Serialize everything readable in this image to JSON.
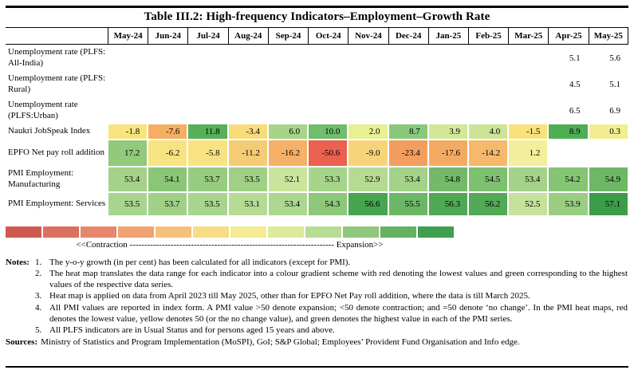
{
  "title": "Table III.2: High-frequency Indicators–Employment–Growth Rate",
  "columns": [
    "May-24",
    "Jun-24",
    "Jul-24",
    "Aug-24",
    "Sep-24",
    "Oct-24",
    "Nov-24",
    "Dec-24",
    "Jan-25",
    "Feb-25",
    "Mar-25",
    "Apr-25",
    "May-25"
  ],
  "rows": [
    {
      "label": "Unemployment rate (PLFS: All-India)",
      "values": [
        "",
        "",
        "",
        "",
        "",
        "",
        "",
        "",
        "",
        "",
        "",
        "5.1",
        "5.6"
      ],
      "colors": [
        "",
        "",
        "",
        "",
        "",
        "",
        "",
        "",
        "",
        "",
        "",
        "",
        ""
      ]
    },
    {
      "label": "Unemployment rate (PLFS: Rural)",
      "values": [
        "",
        "",
        "",
        "",
        "",
        "",
        "",
        "",
        "",
        "",
        "",
        "4.5",
        "5.1"
      ],
      "colors": [
        "",
        "",
        "",
        "",
        "",
        "",
        "",
        "",
        "",
        "",
        "",
        "",
        ""
      ]
    },
    {
      "label": "Unemployment rate (PLFS:Urban)",
      "values": [
        "",
        "",
        "",
        "",
        "",
        "",
        "",
        "",
        "",
        "",
        "",
        "6.5",
        "6.9"
      ],
      "colors": [
        "",
        "",
        "",
        "",
        "",
        "",
        "",
        "",
        "",
        "",
        "",
        "",
        ""
      ]
    },
    {
      "label": "Naukri JobSpeak Index",
      "values": [
        "-1.8",
        "-7.6",
        "11.8",
        "-3.4",
        "6.0",
        "10.0",
        "2.0",
        "8.7",
        "3.9",
        "4.0",
        "-1.5",
        "8.9",
        "0.3"
      ],
      "colors": [
        "#f9e47e",
        "#f4af63",
        "#55b057",
        "#f8dc7a",
        "#a6d489",
        "#70bd6d",
        "#e9ef93",
        "#89c87b",
        "#d2e797",
        "#cbe496",
        "#f9e27c",
        "#4fae54",
        "#f2ee8f"
      ]
    },
    {
      "label": "EPFO Net pay roll addition",
      "values": [
        "17.2",
        "-6.2",
        "-5.8",
        "-11.2",
        "-16.2",
        "-50.6",
        "-9.0",
        "-23.4",
        "-17.6",
        "-14.2",
        "1.2",
        "",
        ""
      ],
      "colors": [
        "#92c97c",
        "#f8e383",
        "#f8e383",
        "#f6cb75",
        "#f4b167",
        "#ea6150",
        "#f7d47a",
        "#f19e5e",
        "#f3ab64",
        "#f5b96c",
        "#f3ee9c",
        "",
        ""
      ]
    },
    {
      "label": "PMI Employment: Manufacturing",
      "values": [
        "53.4",
        "54.1",
        "53.7",
        "53.5",
        "52.1",
        "53.3",
        "52.9",
        "53.4",
        "54.8",
        "54.5",
        "53.4",
        "54.2",
        "54.9"
      ],
      "colors": [
        "#a3d288",
        "#8ac677",
        "#97cc80",
        "#9fd085",
        "#cbe49c",
        "#a7d48b",
        "#b5da92",
        "#a3d288",
        "#72ba69",
        "#7dc070",
        "#a3d288",
        "#85c474",
        "#6db866"
      ]
    },
    {
      "label": "PMI Employment: Services",
      "values": [
        "53.5",
        "53.7",
        "53.5",
        "53.1",
        "53.4",
        "54.3",
        "56.6",
        "55.5",
        "56.3",
        "56.2",
        "52.5",
        "53.9",
        "57.1"
      ],
      "colors": [
        "#a8d58d",
        "#a0d187",
        "#a8d58d",
        "#b6db94",
        "#abd78f",
        "#8dc77a",
        "#47a44f",
        "#6cb765",
        "#4fa854",
        "#52aa56",
        "#c5e19a",
        "#99ce82",
        "#3b9d48"
      ]
    }
  ],
  "legend": {
    "segments": [
      "#cf5a50",
      "#dc7060",
      "#e6876b",
      "#efa373",
      "#f5c07c",
      "#f9dc86",
      "#f5ec92",
      "#dceb9b",
      "#b7dc93",
      "#8fc87c",
      "#63b262",
      "#3f9f4e"
    ],
    "caption": "<<Contraction ---------------------------------------------------------------------- Expansion>>"
  },
  "notes": {
    "label": "Notes:",
    "items": [
      {
        "num": "1.",
        "text": "The y-o-y growth (in per cent) has been calculated for all indicators (except for PMI)."
      },
      {
        "num": "2.",
        "text": "The heat map translates the data range for each indicator into a colour gradient scheme with red denoting the lowest values and green corresponding to the highest values of the respective data series."
      },
      {
        "num": "3.",
        "text": "Heat map is applied on data from April 2023 till May 2025, other than for EPFO Net Pay roll addition, where the data is till March 2025."
      },
      {
        "num": "4.",
        "text": "All PMI values are reported in index form. A PMI value >50 denote expansion; <50 denote contraction; and =50 denote ‘no change’. In the PMI heat maps, red denotes the lowest value, yellow denotes 50 (or the no change value), and green denotes the highest value in each of the PMI series."
      },
      {
        "num": "5.",
        "text": "All PLFS indicators are in Usual Status and for persons aged 15 years and above."
      }
    ]
  },
  "sources": {
    "label": "Sources:",
    "text": "Ministry of Statistics and Program Implementation (MoSPI), GoI; S&P Global; Employees’ Provident Fund Organisation and Info edge."
  },
  "chart_data": {
    "type": "heatmap",
    "title": "Table III.2: High-frequency Indicators–Employment–Growth Rate",
    "x": [
      "May-24",
      "Jun-24",
      "Jul-24",
      "Aug-24",
      "Sep-24",
      "Oct-24",
      "Nov-24",
      "Dec-24",
      "Jan-25",
      "Feb-25",
      "Mar-25",
      "Apr-25",
      "May-25"
    ],
    "series": [
      {
        "name": "Unemployment rate (PLFS: All-India)",
        "values": [
          null,
          null,
          null,
          null,
          null,
          null,
          null,
          null,
          null,
          null,
          null,
          5.1,
          5.6
        ]
      },
      {
        "name": "Unemployment rate (PLFS: Rural)",
        "values": [
          null,
          null,
          null,
          null,
          null,
          null,
          null,
          null,
          null,
          null,
          null,
          4.5,
          5.1
        ]
      },
      {
        "name": "Unemployment rate (PLFS:Urban)",
        "values": [
          null,
          null,
          null,
          null,
          null,
          null,
          null,
          null,
          null,
          null,
          null,
          6.5,
          6.9
        ]
      },
      {
        "name": "Naukri JobSpeak Index",
        "values": [
          -1.8,
          -7.6,
          11.8,
          -3.4,
          6.0,
          10.0,
          2.0,
          8.7,
          3.9,
          4.0,
          -1.5,
          8.9,
          0.3
        ]
      },
      {
        "name": "EPFO Net pay roll addition",
        "values": [
          17.2,
          -6.2,
          -5.8,
          -11.2,
          -16.2,
          -50.6,
          -9.0,
          -23.4,
          -17.6,
          -14.2,
          1.2,
          null,
          null
        ]
      },
      {
        "name": "PMI Employment: Manufacturing",
        "values": [
          53.4,
          54.1,
          53.7,
          53.5,
          52.1,
          53.3,
          52.9,
          53.4,
          54.8,
          54.5,
          53.4,
          54.2,
          54.9
        ]
      },
      {
        "name": "PMI Employment: Services",
        "values": [
          53.5,
          53.7,
          53.5,
          53.1,
          53.4,
          54.3,
          56.6,
          55.5,
          56.3,
          56.2,
          52.5,
          53.9,
          57.1
        ]
      }
    ],
    "legend_note": "red = lowest value, yellow = mid / PMI no-change (50), green = highest value of each series"
  }
}
